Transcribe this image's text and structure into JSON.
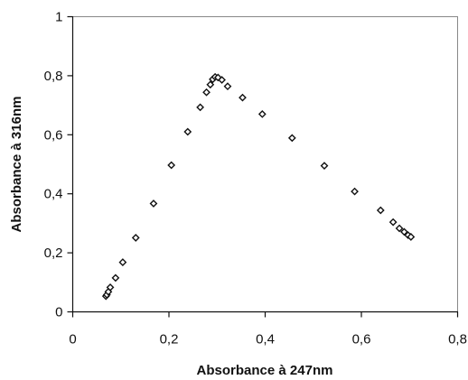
{
  "chart_data": {
    "type": "scatter",
    "xlabel": "Absorbance à 247nm",
    "ylabel": "Absorbance à 316nm",
    "xlim": [
      0,
      0.8
    ],
    "ylim": [
      0,
      1
    ],
    "x_ticks": [
      0,
      0.2,
      0.4,
      0.6,
      0.8
    ],
    "y_ticks": [
      0,
      0.2,
      0.4,
      0.6,
      0.8,
      1
    ],
    "x_tick_labels": [
      "0",
      "0,2",
      "0,4",
      "0,6",
      "0,8"
    ],
    "y_tick_labels": [
      "0",
      "0,2",
      "0,4",
      "0,6",
      "0,8",
      "1"
    ],
    "grid": false,
    "legend": "none",
    "marker": "diamond-open",
    "series": [
      {
        "points": [
          [
            0.069,
            0.053
          ],
          [
            0.071,
            0.058
          ],
          [
            0.074,
            0.068
          ],
          [
            0.078,
            0.083
          ],
          [
            0.089,
            0.115
          ],
          [
            0.104,
            0.168
          ],
          [
            0.131,
            0.251
          ],
          [
            0.168,
            0.367
          ],
          [
            0.205,
            0.497
          ],
          [
            0.239,
            0.61
          ],
          [
            0.265,
            0.693
          ],
          [
            0.278,
            0.744
          ],
          [
            0.286,
            0.77
          ],
          [
            0.291,
            0.788
          ],
          [
            0.296,
            0.796
          ],
          [
            0.302,
            0.794
          ],
          [
            0.31,
            0.786
          ],
          [
            0.322,
            0.764
          ],
          [
            0.353,
            0.726
          ],
          [
            0.394,
            0.67
          ],
          [
            0.456,
            0.589
          ],
          [
            0.523,
            0.495
          ],
          [
            0.586,
            0.408
          ],
          [
            0.64,
            0.344
          ],
          [
            0.666,
            0.304
          ],
          [
            0.679,
            0.283
          ],
          [
            0.689,
            0.271
          ],
          [
            0.697,
            0.26
          ],
          [
            0.703,
            0.254
          ]
        ]
      }
    ]
  }
}
